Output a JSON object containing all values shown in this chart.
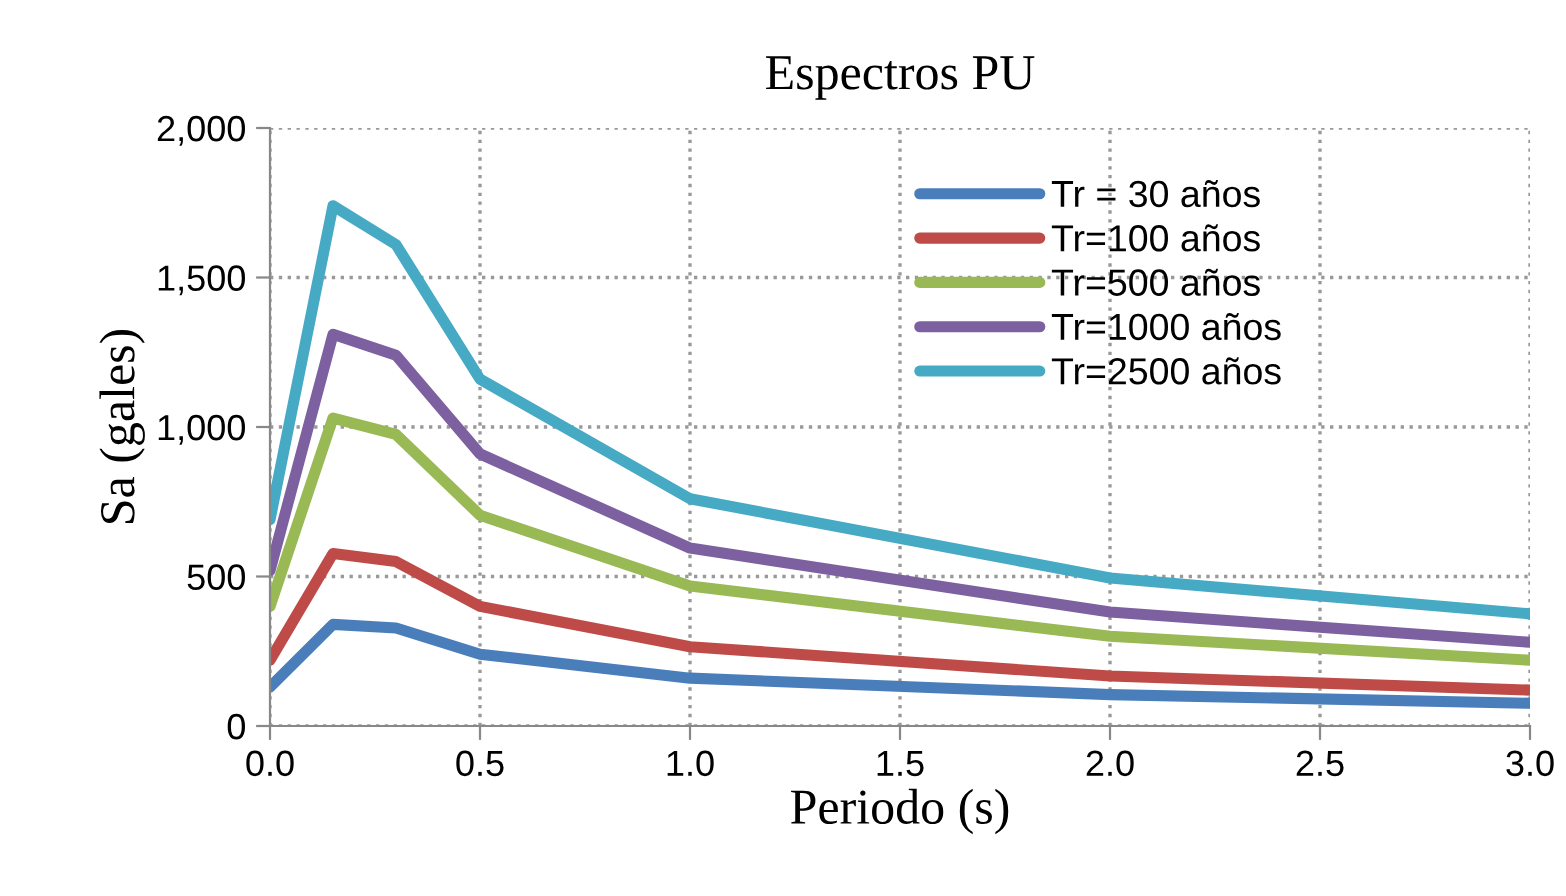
{
  "chart_data": {
    "type": "line",
    "title": "Espectros PU",
    "xlabel": "Periodo (s)",
    "ylabel": "Sa (gales)",
    "x": [
      0,
      0.15,
      0.3,
      0.5,
      1.0,
      2.0,
      3.0
    ],
    "series": [
      {
        "name": "Tr = 30 años",
        "color": "#4a7ebb",
        "values": [
          130,
          340,
          328,
          240,
          160,
          105,
          76
        ]
      },
      {
        "name": "Tr=100 años",
        "color": "#be4b48",
        "values": [
          220,
          577,
          550,
          400,
          265,
          167,
          120
        ]
      },
      {
        "name": "Tr=500 años",
        "color": "#98b954",
        "values": [
          400,
          1030,
          975,
          705,
          468,
          300,
          220
        ]
      },
      {
        "name": "Tr=1000 años",
        "color": "#7d60a0",
        "values": [
          520,
          1310,
          1240,
          910,
          595,
          381,
          280
        ]
      },
      {
        "name": "Tr=2500 años",
        "color": "#46aac5",
        "values": [
          690,
          1740,
          1610,
          1160,
          760,
          495,
          375
        ]
      }
    ],
    "xlim": [
      0,
      3.0
    ],
    "xticks": [
      {
        "value": 0,
        "label": "0.0"
      },
      {
        "value": 0.5,
        "label": "0.5"
      },
      {
        "value": 1.0,
        "label": "1.0"
      },
      {
        "value": 1.5,
        "label": "1.5"
      },
      {
        "value": 2.0,
        "label": "2.0"
      },
      {
        "value": 2.5,
        "label": "2.5"
      },
      {
        "value": 3.0,
        "label": "3.0"
      }
    ],
    "ylim": [
      0,
      2000
    ],
    "yticks": [
      0,
      500,
      {
        "value": 1000,
        "label": "1,000"
      },
      {
        "value": 1500,
        "label": "1,500"
      },
      {
        "value": 2000,
        "label": "2,000"
      }
    ],
    "grid": true,
    "legend": "top right",
    "marker": "none",
    "line_style": "solid"
  }
}
